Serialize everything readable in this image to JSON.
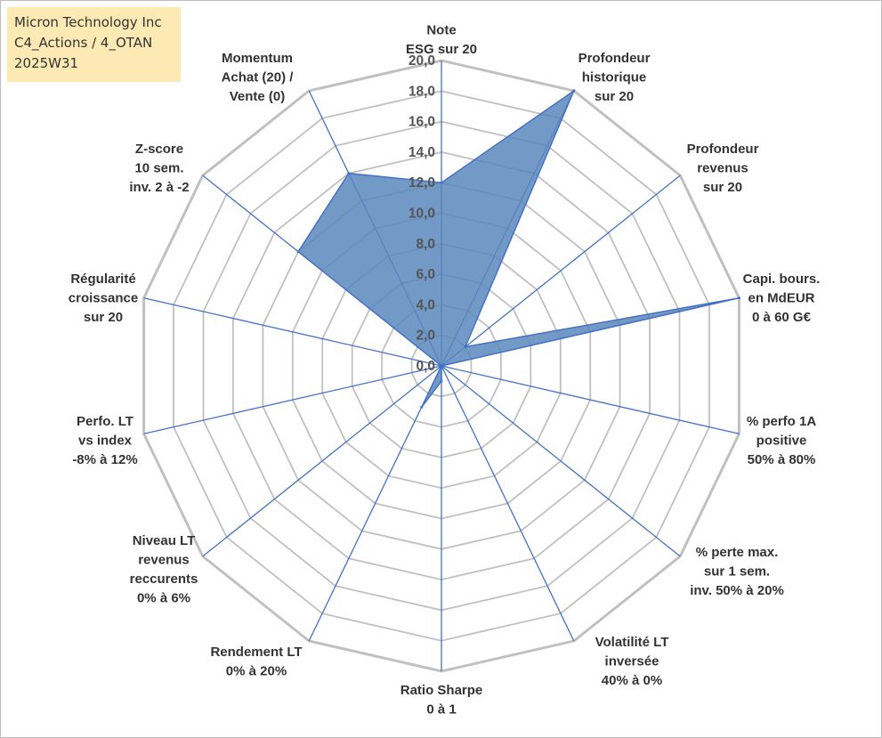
{
  "title_box": {
    "line1": "Micron Technology Inc",
    "line2": "C4_Actions / 4_OTAN",
    "line3": "2025W31"
  },
  "colors": {
    "grid": "#c0c0c0",
    "axis": "#4472c4",
    "fill": "#5b87bd",
    "fill_opacity": "0.85",
    "outline": "#4472c4",
    "title_bg": "#fde9b3"
  },
  "chart_data": {
    "type": "radar",
    "title": "",
    "rlim": [
      0,
      20
    ],
    "r_ticks": [
      "0,0",
      "2,0",
      "4,0",
      "6,0",
      "8,0",
      "10,0",
      "12,0",
      "14,0",
      "16,0",
      "18,0",
      "20,0"
    ],
    "grid": true,
    "axes": [
      {
        "label": [
          "Note",
          "ESG sur 20"
        ],
        "value": 12
      },
      {
        "label": [
          "Profondeur",
          "historique",
          "sur 20"
        ],
        "value": 20
      },
      {
        "label": [
          "Profondeur",
          "revenus",
          "sur 20"
        ],
        "value": 2
      },
      {
        "label": [
          "Capi. bours.",
          "en MdEUR",
          "0 à 60 G€"
        ],
        "value": 20
      },
      {
        "label": [
          "% perfo 1A",
          "positive",
          "50% à 80%"
        ],
        "value": 0
      },
      {
        "label": [
          "% perte max.",
          "sur 1 sem.",
          "inv. 50% à 20%"
        ],
        "value": 0
      },
      {
        "label": [
          "Volatilité LT",
          "inversée",
          "40% à 0%"
        ],
        "value": 0
      },
      {
        "label": [
          "Ratio Sharpe",
          "0 à 1"
        ],
        "value": 1
      },
      {
        "label": [
          "Rendement LT",
          "0% à 20%"
        ],
        "value": 3
      },
      {
        "label": [
          "Niveau LT",
          "revenus",
          "reccurents",
          "0% à 6%"
        ],
        "value": 0
      },
      {
        "label": [
          "Perfo. LT",
          "vs index",
          "-8% à 12%"
        ],
        "value": 0
      },
      {
        "label": [
          "Régularité",
          "croissance",
          "sur 20"
        ],
        "value": 0
      },
      {
        "label": [
          "Z-score",
          "10 sem.",
          "inv. 2 à -2"
        ],
        "value": 12
      },
      {
        "label": [
          "Momentum",
          "Achat (20) /",
          "Vente (0)"
        ],
        "value": 14
      }
    ]
  }
}
